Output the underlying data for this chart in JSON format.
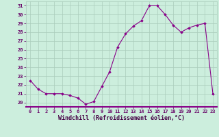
{
  "x": [
    0,
    1,
    2,
    3,
    4,
    5,
    6,
    7,
    8,
    9,
    10,
    11,
    12,
    13,
    14,
    15,
    16,
    17,
    18,
    19,
    20,
    21,
    22,
    23
  ],
  "y": [
    22.5,
    21.5,
    21.0,
    21.0,
    21.0,
    20.8,
    20.5,
    19.8,
    20.1,
    21.8,
    23.5,
    26.3,
    27.8,
    28.7,
    29.3,
    31.0,
    31.0,
    30.0,
    28.8,
    28.0,
    28.5,
    28.8,
    29.0,
    21.0
  ],
  "line_color": "#880088",
  "marker": "D",
  "marker_size": 1.8,
  "bg_color": "#cceedd",
  "grid_color": "#aaccbb",
  "xlabel": "Windchill (Refroidissement éolien,°C)",
  "xlim": [
    -0.5,
    23.5
  ],
  "ylim": [
    19.5,
    31.5
  ],
  "yticks": [
    20,
    21,
    22,
    23,
    24,
    25,
    26,
    27,
    28,
    29,
    30,
    31
  ],
  "xticks": [
    0,
    1,
    2,
    3,
    4,
    5,
    6,
    7,
    8,
    9,
    10,
    11,
    12,
    13,
    14,
    15,
    16,
    17,
    18,
    19,
    20,
    21,
    22,
    23
  ],
  "tick_fontsize": 5,
  "xlabel_fontsize": 6,
  "line_width": 0.8
}
